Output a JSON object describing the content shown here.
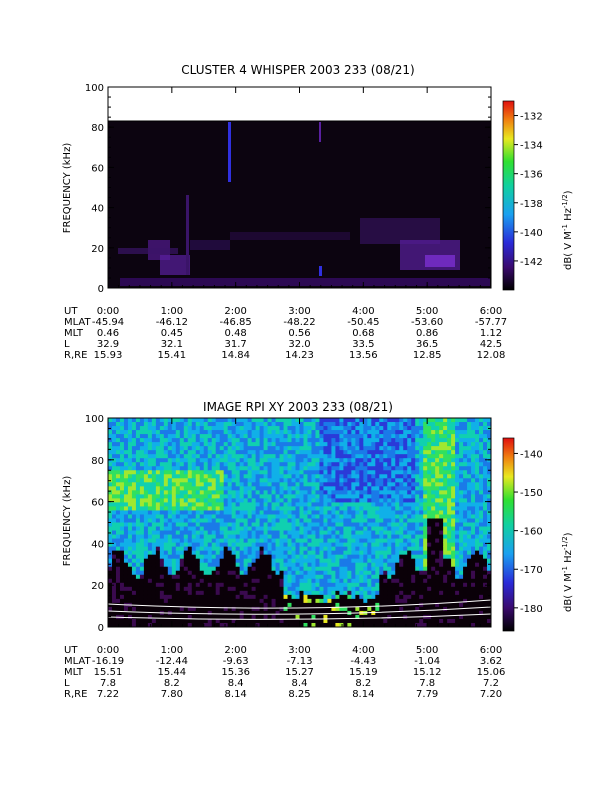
{
  "chart_data": [
    {
      "type": "heatmap",
      "title": "CLUSTER 4 WHISPER 2003 233 (08/21)",
      "ylabel": "FREQUENCY (kHz)",
      "ylim": [
        0,
        100
      ],
      "yticks": [
        "0",
        "20",
        "40",
        "60",
        "80",
        "100"
      ],
      "data_ceiling_khz": 80,
      "colorbar": {
        "label": "dB( V M⁻¹ Hz⁻¹ᐟ²)",
        "label_main": "dB( V M",
        "label_exp1": "-1",
        "label_mid": " Hz",
        "label_exp2": "-1/2",
        "label_end": ")",
        "range": [
          -144,
          -131
        ],
        "ticks": [
          "-132",
          "-134",
          "-136",
          "-138",
          "-140",
          "-142"
        ]
      },
      "time_ticks": [
        "0:00",
        "1:00",
        "2:00",
        "3:00",
        "4:00",
        "5:00",
        "6:00"
      ],
      "ephemeris_rows": [
        {
          "label": "UT",
          "values": [
            "0:00",
            "1:00",
            "2:00",
            "3:00",
            "4:00",
            "5:00",
            "6:00"
          ]
        },
        {
          "label": "MLAT",
          "values": [
            "-45.94",
            "-46.12",
            "-46.85",
            "-48.22",
            "-50.45",
            "-53.60",
            "-57.77"
          ]
        },
        {
          "label": "MLT",
          "values": [
            "0.46",
            "0.45",
            "0.48",
            "0.56",
            "0.68",
            "0.86",
            "1.12"
          ]
        },
        {
          "label": "L",
          "values": [
            "32.9",
            "32.1",
            "31.7",
            "32.0",
            "33.5",
            "36.5",
            "42.5"
          ]
        },
        {
          "label": "R,RE",
          "values": [
            "15.93",
            "15.41",
            "14.84",
            "14.23",
            "13.56",
            "12.85",
            "12.08"
          ]
        }
      ]
    },
    {
      "type": "heatmap",
      "title": "IMAGE RPI XY 2003 233 (08/21)",
      "ylabel": "FREQUENCY (kHz)",
      "ylim": [
        0,
        100
      ],
      "yticks": [
        "0",
        "20",
        "40",
        "60",
        "80",
        "100"
      ],
      "colorbar": {
        "label": "dB( V M⁻¹ Hz⁻¹ᐟ²)",
        "label_main": "dB( V M",
        "label_exp1": "-1",
        "label_mid": " Hz",
        "label_exp2": "-1/2",
        "label_end": ")",
        "range": [
          -186,
          -136
        ],
        "ticks": [
          "-140",
          "-150",
          "-160",
          "-170",
          "-180"
        ]
      },
      "time_ticks": [
        "0:00",
        "1:00",
        "2:00",
        "3:00",
        "4:00",
        "5:00",
        "6:00"
      ],
      "ephemeris_rows": [
        {
          "label": "UT",
          "values": [
            "0:00",
            "1:00",
            "2:00",
            "3:00",
            "4:00",
            "5:00",
            "6:00"
          ]
        },
        {
          "label": "MLAT",
          "values": [
            "-16.19",
            "-12.44",
            "-9.63",
            "-7.13",
            "-4.43",
            "-1.04",
            "3.62"
          ]
        },
        {
          "label": "MLT",
          "values": [
            "15.51",
            "15.44",
            "15.36",
            "15.27",
            "15.19",
            "15.12",
            "15.06"
          ]
        },
        {
          "label": "L",
          "values": [
            "7.8",
            "8.2",
            "8.4",
            "8.4",
            "8.2",
            "7.8",
            "7.2"
          ]
        },
        {
          "label": "R,RE",
          "values": [
            "7.22",
            "7.80",
            "8.14",
            "8.25",
            "8.14",
            "7.79",
            "7.20"
          ]
        }
      ]
    }
  ]
}
